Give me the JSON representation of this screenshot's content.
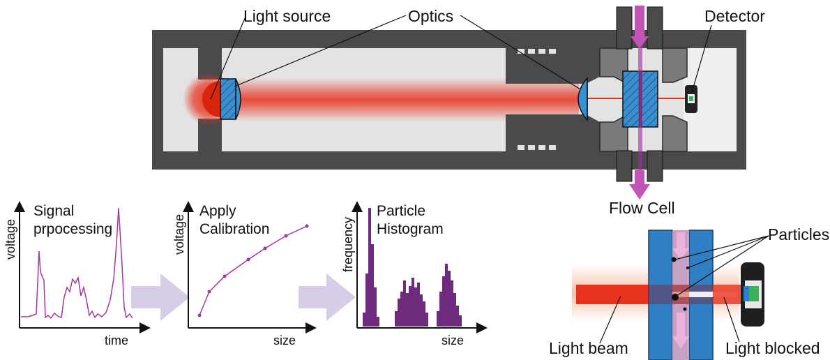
{
  "instrument": {
    "label_light_source": "Light source",
    "label_optics": "Optics",
    "label_detector": "Detector",
    "label_flow_cell": "Flow Cell"
  },
  "processing": {
    "signal": {
      "title_line1": "Signal",
      "title_line2": "prpocessing",
      "ylabel": "voltage",
      "xlabel": "time"
    },
    "calibration": {
      "title_line1": "Apply",
      "title_line2": "Calibration",
      "ylabel": "voltage",
      "xlabel": "size"
    },
    "histogram": {
      "title_line1": "Particle",
      "title_line2": "Histogram",
      "ylabel": "frequency",
      "xlabel": "size"
    }
  },
  "detail": {
    "label_particles": "Particles",
    "label_light_beam": "Light beam",
    "label_light_blocked": "Light blocked"
  },
  "colors": {
    "housing": "#4a4a4a",
    "chamber": "#e3e3e3",
    "beam": "#e8321e",
    "lens": "#3a8fd0",
    "flow": "#9b2f9b",
    "plot_line": "#a3359f",
    "histogram": "#6e2a7c",
    "arrow": "#d8cde6"
  }
}
